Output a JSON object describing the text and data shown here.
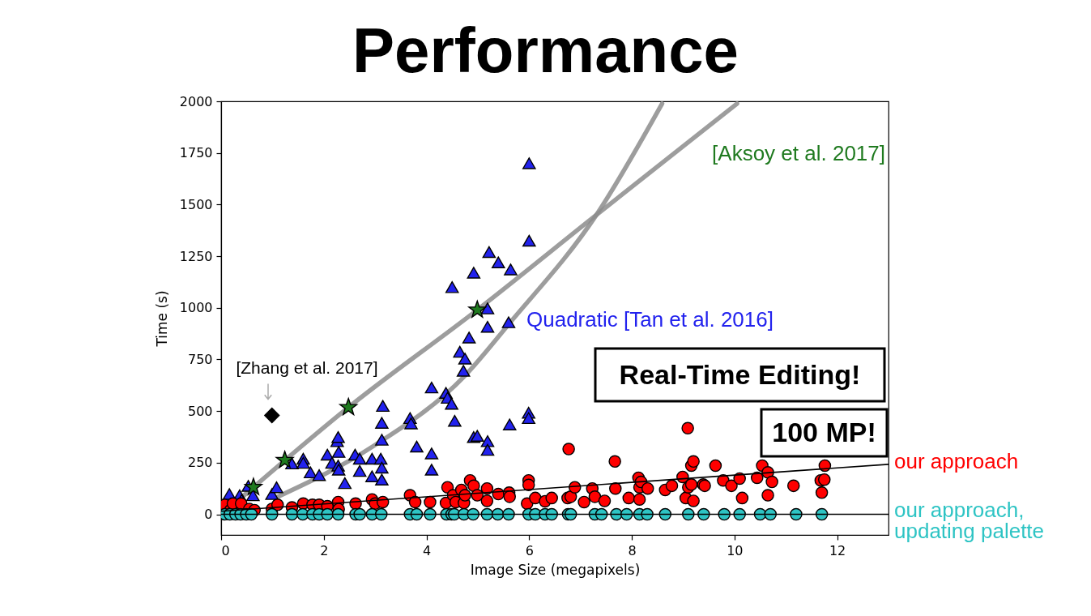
{
  "chart_data": {
    "type": "scatter",
    "title": "Performance",
    "xlabel": "Image Size (megapixels)",
    "ylabel": "Time (s)",
    "xlim": [
      0,
      13
    ],
    "ylim": [
      -100,
      2000
    ],
    "xticks": [
      0,
      2,
      4,
      6,
      8,
      10,
      12
    ],
    "yticks": [
      0,
      250,
      500,
      750,
      1000,
      1250,
      1500,
      1750,
      2000
    ],
    "series": [
      {
        "type": "line",
        "color": "#8c8c8c",
        "x": [
          1.05,
          2.95,
          4.74,
          5.6,
          7.31,
          8.59
        ],
        "values": [
          79,
          328,
          669,
          920,
          1450,
          1989
        ]
      },
      {
        "type": "line",
        "color": "#8c8c8c",
        "x": [
          0.3,
          2.48,
          4.99,
          7.31,
          10.05
        ],
        "values": [
          60,
          518,
          990,
          1450,
          1989
        ]
      },
      {
        "name": "Quadratic [Tan et al. 2016]",
        "color": "#2222ee",
        "marker": "triangle",
        "x": [
          0.16,
          0.36,
          0.4,
          0.53,
          0.62,
          0.99,
          1.08,
          1.38,
          1.6,
          1.6,
          1.74,
          1.91,
          2.07,
          2.16,
          2.26,
          2.28,
          2.28,
          2.29,
          2.29,
          2.41,
          2.61,
          2.7,
          2.7,
          2.94,
          2.94,
          3.11,
          3.13,
          3.13,
          3.13,
          3.13,
          3.15,
          3.68,
          3.7,
          3.81,
          4.1,
          4.1,
          4.1,
          4.38,
          4.41,
          4.49,
          4.5,
          4.55,
          4.65,
          4.72,
          4.75,
          4.83,
          4.92,
          4.92,
          4.99,
          5.19,
          5.19,
          5.19,
          5.19,
          5.22,
          5.4,
          5.6,
          5.62,
          5.64,
          5.99,
          5.99,
          6.0,
          6.0
        ],
        "values": [
          98,
          92,
          70,
          138,
          92,
          98,
          131,
          246,
          269,
          249,
          203,
          190,
          289,
          249,
          354,
          374,
          236,
          302,
          216,
          151,
          289,
          269,
          210,
          269,
          184,
          269,
          226,
          168,
          361,
          443,
          525,
          466,
          440,
          328,
          614,
          295,
          216,
          588,
          564,
          535,
          1100,
          453,
          787,
          695,
          754,
          856,
          374,
          1170,
          380,
          997,
          908,
          354,
          312,
          1270,
          1220,
          930,
          435,
          1186,
          492,
          466,
          1325,
          1700
        ]
      },
      {
        "name": "[Aksoy et al. 2017]",
        "color": "#1f7a1f",
        "marker": "star",
        "x": [
          0.63,
          1.24,
          2.48,
          4.99
        ],
        "values": [
          131,
          262,
          518,
          990
        ]
      },
      {
        "name": "[Zhang et al. 2017]",
        "color": "#000000",
        "marker": "diamond",
        "x": [
          0.99
        ],
        "values": [
          479
        ]
      },
      {
        "name": "our approach",
        "color": "#ff0000",
        "marker": "circle",
        "x": [
          0.07,
          0.18,
          0.23,
          0.39,
          0.55,
          0.65,
          0.99,
          1.1,
          1.38,
          1.6,
          1.78,
          1.91,
          2.07,
          2.28,
          2.29,
          2.62,
          2.94,
          3.0,
          3.15,
          3.68,
          3.78,
          4.07,
          4.38,
          4.41,
          4.52,
          4.57,
          4.68,
          4.73,
          4.75,
          4.85,
          4.92,
          4.99,
          5.18,
          5.18,
          5.4,
          5.61,
          5.62,
          5.96,
          5.99,
          5.99,
          6.12,
          6.31,
          6.44,
          6.75,
          6.77,
          6.81,
          6.89,
          7.07,
          7.23,
          7.28,
          7.47,
          7.67,
          7.68,
          7.94,
          8.13,
          8.15,
          8.15,
          8.18,
          8.31,
          8.65,
          8.78,
          8.99,
          9.05,
          9.09,
          9.1,
          9.16,
          9.16,
          9.2,
          9.2,
          9.39,
          9.42,
          9.63,
          9.78,
          9.94,
          10.1,
          10.15,
          10.44,
          10.54,
          10.65,
          10.65,
          10.73,
          11.15,
          11.68,
          11.7,
          11.75,
          11.76
        ],
        "values": [
          46,
          20,
          52,
          52,
          26,
          20,
          26,
          46,
          33,
          52,
          46,
          46,
          39,
          59,
          25,
          52,
          72,
          52,
          59,
          92,
          59,
          59,
          55,
          131,
          92,
          59,
          118,
          55,
          92,
          164,
          138,
          92,
          125,
          65,
          98,
          105,
          85,
          52,
          164,
          142,
          79,
          63,
          79,
          79,
          316,
          85,
          131,
          59,
          125,
          85,
          65,
          256,
          125,
          79,
          177,
          131,
          72,
          157,
          125,
          118,
          138,
          181,
          79,
          417,
          131,
          236,
          144,
          256,
          65,
          144,
          138,
          236,
          164,
          138,
          173,
          79,
          177,
          236,
          203,
          92,
          157,
          138,
          164,
          105,
          168,
          236
        ]
      },
      {
        "name": "our approach, updating palette",
        "color": "#2ec4c4",
        "marker": "circle",
        "x": [
          0.07,
          0.17,
          0.28,
          0.38,
          0.49,
          0.59,
          0.99,
          1.38,
          1.59,
          1.78,
          1.91,
          2.07,
          2.28,
          2.62,
          2.7,
          2.94,
          3.12,
          3.68,
          3.81,
          4.07,
          4.39,
          4.49,
          4.54,
          4.73,
          4.91,
          5.18,
          5.39,
          5.6,
          5.99,
          6.12,
          6.31,
          6.44,
          6.76,
          6.81,
          7.28,
          7.41,
          7.7,
          7.9,
          8.15,
          8.3,
          8.65,
          9.1,
          9.4,
          9.8,
          10.1,
          10.5,
          10.7,
          11.2,
          11.7
        ],
        "values": [
          0,
          0,
          0,
          0,
          0,
          0,
          0,
          0,
          0,
          0,
          0,
          0,
          0,
          0,
          0,
          0,
          0,
          0,
          0,
          0,
          0,
          0,
          0,
          0,
          0,
          0,
          0,
          0,
          0,
          0,
          0,
          0,
          0,
          0,
          0,
          0,
          0,
          0,
          0,
          0,
          0,
          0,
          0,
          0,
          0,
          0,
          0,
          0,
          0
        ]
      },
      {
        "type": "line",
        "color": "#000000",
        "x": [
          0,
          13
        ],
        "values": [
          15,
          242
        ]
      },
      {
        "type": "line",
        "color": "#000000",
        "x": [
          0,
          13
        ],
        "values": [
          0,
          0
        ]
      }
    ],
    "annotations": [
      "100 MP!",
      "Real-Time Editing!"
    ]
  }
}
